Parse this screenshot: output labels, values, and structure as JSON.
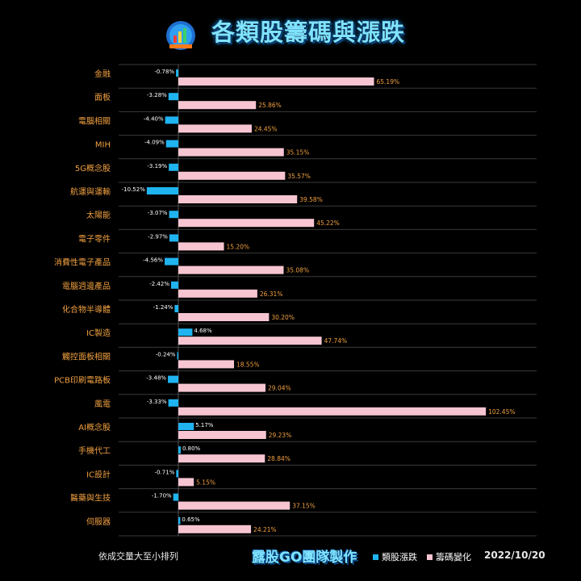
{
  "title": "各類股籌碼與漲跌",
  "footnote": "依成交量大至小排列",
  "brand": "露股GO團隊製作",
  "date": "2022/10/20",
  "colors": {
    "blue": "#1fb4f0",
    "pink": "#f7c5d2",
    "label": "#f0a040"
  },
  "chart_data": {
    "type": "bar",
    "orientation": "horizontal",
    "categories": [
      "金融",
      "面板",
      "電腦相關",
      "MIH",
      "5G概念股",
      "航運與運輸",
      "太陽能",
      "電子零件",
      "消費性電子產品",
      "電腦週邊產品",
      "化合物半導體",
      "IC製造",
      "觸控面板相關",
      "PCB印刷電路板",
      "風電",
      "AI概念股",
      "手機代工",
      "IC設計",
      "醫藥與生技",
      "伺服器"
    ],
    "series": [
      {
        "name": "類股漲跌",
        "values": [
          -0.78,
          -3.28,
          -4.4,
          -4.09,
          -3.19,
          -10.52,
          -3.07,
          -2.97,
          -4.56,
          -2.42,
          -1.24,
          4.68,
          -0.24,
          -3.48,
          -3.33,
          5.17,
          0.8,
          -0.71,
          -1.7,
          0.65
        ],
        "labels": [
          "-0.78%",
          "-3.28%",
          "-4.40%",
          "-4.09%",
          "-3.19%",
          "-10.52%",
          "-3.07%",
          "-2.97%",
          "-4.56%",
          "-2.42%",
          "-1.24%",
          "4.68%",
          "-0.24%",
          "-3.48%",
          "-3.33%",
          "5.17%",
          "0.80%",
          "-0.71%",
          "-1.70%",
          "0.65%"
        ]
      },
      {
        "name": "籌碼變化",
        "values": [
          65.19,
          25.86,
          24.45,
          35.15,
          35.57,
          39.58,
          45.22,
          15.2,
          35.08,
          26.31,
          30.2,
          47.74,
          18.55,
          29.04,
          102.45,
          29.23,
          28.84,
          5.15,
          37.15,
          24.21
        ],
        "labels": [
          "65.19%",
          "25.86%",
          "24.45%",
          "35.15%",
          "35.57%",
          "39.58%",
          "45.22%",
          "15.20%",
          "35.08%",
          "26.31%",
          "30.20%",
          "47.74%",
          "18.55%",
          "29.04%",
          "102.45%",
          "29.23%",
          "28.84%",
          "5.15%",
          "37.15%",
          "24.21%"
        ]
      }
    ],
    "legend": "bottom-right",
    "grid": true
  }
}
